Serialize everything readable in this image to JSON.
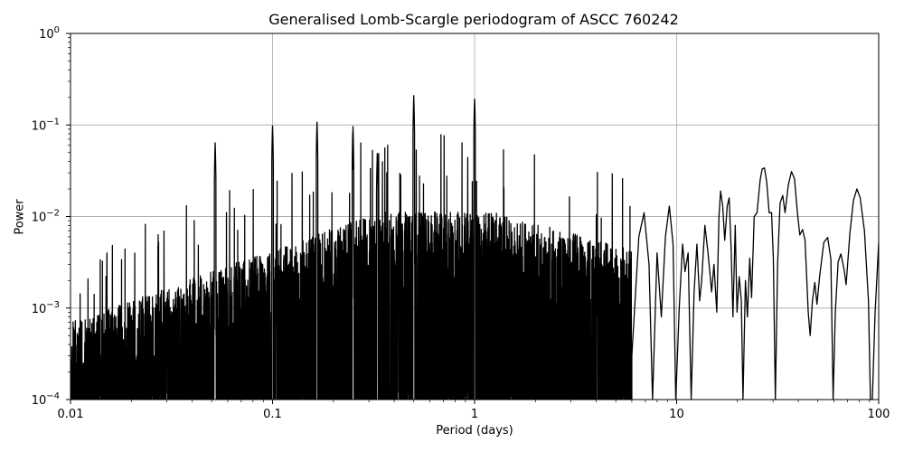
{
  "chart_data": {
    "type": "line",
    "title": "Generalised Lomb-Scargle periodogram of ASCC 760242",
    "xlabel": "Period (days)",
    "ylabel": "Power",
    "xscale": "log",
    "yscale": "log",
    "xlim": [
      0.01,
      100
    ],
    "ylim": [
      0.0001,
      1
    ],
    "grid": true,
    "legend": null,
    "line_color": "#000000",
    "grid_color": "#b0b0b0",
    "x_ticks": [
      {
        "value": 0.01,
        "label": "0.01"
      },
      {
        "value": 0.1,
        "label": "0.1"
      },
      {
        "value": 1,
        "label": "1"
      },
      {
        "value": 10,
        "label": "10"
      },
      {
        "value": 100,
        "label": "100"
      }
    ],
    "y_ticks": [
      {
        "value": 0.0001,
        "base": "10",
        "exp": "−4"
      },
      {
        "value": 0.001,
        "base": "10",
        "exp": "−3"
      },
      {
        "value": 0.01,
        "base": "10",
        "exp": "−2"
      },
      {
        "value": 0.1,
        "base": "10",
        "exp": "−1"
      },
      {
        "value": 1,
        "base": "10",
        "exp": "0"
      }
    ],
    "notable_peaks": [
      {
        "period": 0.052,
        "power": 0.065
      },
      {
        "period": 0.1,
        "power": 0.1
      },
      {
        "period": 0.166,
        "power": 0.11
      },
      {
        "period": 0.25,
        "power": 0.1
      },
      {
        "period": 0.33,
        "power": 0.05
      },
      {
        "period": 0.5,
        "power": 0.21
      },
      {
        "period": 1.0,
        "power": 0.2
      },
      {
        "period": 6.9,
        "power": 0.011
      },
      {
        "period": 9.2,
        "power": 0.013
      },
      {
        "period": 16.5,
        "power": 0.019
      },
      {
        "period": 27.5,
        "power": 0.034
      },
      {
        "period": 37.6,
        "power": 0.031
      },
      {
        "period": 43.0,
        "power": 0.0072
      },
      {
        "period": 48.5,
        "power": 0.0019
      },
      {
        "period": 56.0,
        "power": 0.0059
      },
      {
        "period": 65.0,
        "power": 0.0039
      },
      {
        "period": 78.0,
        "power": 0.02
      }
    ],
    "smooth_tail": [
      [
        6.0,
        0.0003
      ],
      [
        6.5,
        0.006
      ],
      [
        6.9,
        0.011
      ],
      [
        7.3,
        0.003
      ],
      [
        7.6,
        0.0001
      ],
      [
        8.0,
        0.004
      ],
      [
        8.4,
        0.0008
      ],
      [
        8.8,
        0.006
      ],
      [
        9.2,
        0.013
      ],
      [
        9.6,
        0.005
      ],
      [
        9.9,
        0.0001
      ],
      [
        10.3,
        0.001
      ],
      [
        10.7,
        0.005
      ],
      [
        11.0,
        0.0025
      ],
      [
        11.4,
        0.004
      ],
      [
        11.8,
        0.0001
      ],
      [
        12.2,
        0.0015
      ],
      [
        12.6,
        0.005
      ],
      [
        13.0,
        0.0012
      ],
      [
        13.3,
        0.002
      ],
      [
        13.8,
        0.008
      ],
      [
        14.3,
        0.004
      ],
      [
        14.9,
        0.0015
      ],
      [
        15.3,
        0.003
      ],
      [
        15.8,
        0.0009
      ],
      [
        16.2,
        0.01
      ],
      [
        16.5,
        0.019
      ],
      [
        16.9,
        0.013
      ],
      [
        17.3,
        0.0055
      ],
      [
        17.8,
        0.013
      ],
      [
        18.2,
        0.016
      ],
      [
        18.6,
        0.0045
      ],
      [
        19.0,
        0.0008
      ],
      [
        19.5,
        0.008
      ],
      [
        19.9,
        0.0009
      ],
      [
        20.4,
        0.0022
      ],
      [
        20.9,
        0.0012
      ],
      [
        21.3,
        0.0001
      ],
      [
        21.9,
        0.002
      ],
      [
        22.4,
        0.0008
      ],
      [
        23.0,
        0.0035
      ],
      [
        23.5,
        0.0013
      ],
      [
        24.2,
        0.01
      ],
      [
        25.0,
        0.011
      ],
      [
        25.9,
        0.025
      ],
      [
        26.5,
        0.033
      ],
      [
        27.2,
        0.034
      ],
      [
        27.9,
        0.024
      ],
      [
        28.7,
        0.011
      ],
      [
        29.5,
        0.011
      ],
      [
        30.1,
        0.0035
      ],
      [
        30.8,
        0.0001
      ],
      [
        31.6,
        0.003
      ],
      [
        32.5,
        0.014
      ],
      [
        33.5,
        0.017
      ],
      [
        34.4,
        0.011
      ],
      [
        35.7,
        0.022
      ],
      [
        37.0,
        0.031
      ],
      [
        38.3,
        0.026
      ],
      [
        39.6,
        0.011
      ],
      [
        40.7,
        0.0063
      ],
      [
        42.0,
        0.0072
      ],
      [
        43.2,
        0.0055
      ],
      [
        44.8,
        0.0009
      ],
      [
        45.8,
        0.0005
      ],
      [
        47.0,
        0.0012
      ],
      [
        48.3,
        0.0019
      ],
      [
        49.5,
        0.0011
      ],
      [
        51.0,
        0.0022
      ],
      [
        53.5,
        0.0052
      ],
      [
        55.9,
        0.0059
      ],
      [
        58.0,
        0.0034
      ],
      [
        59.5,
        0.0001
      ],
      [
        61.0,
        0.0009
      ],
      [
        63.0,
        0.0032
      ],
      [
        65.0,
        0.0039
      ],
      [
        67.5,
        0.0026
      ],
      [
        69.0,
        0.0018
      ],
      [
        72.0,
        0.0065
      ],
      [
        75.0,
        0.015
      ],
      [
        78.0,
        0.02
      ],
      [
        81.0,
        0.016
      ],
      [
        85.0,
        0.007
      ],
      [
        89.0,
        0.0012
      ],
      [
        91.0,
        0.0001
      ],
      [
        93.0,
        0.0001
      ],
      [
        96.0,
        0.0009
      ],
      [
        100.0,
        0.0052
      ]
    ]
  }
}
